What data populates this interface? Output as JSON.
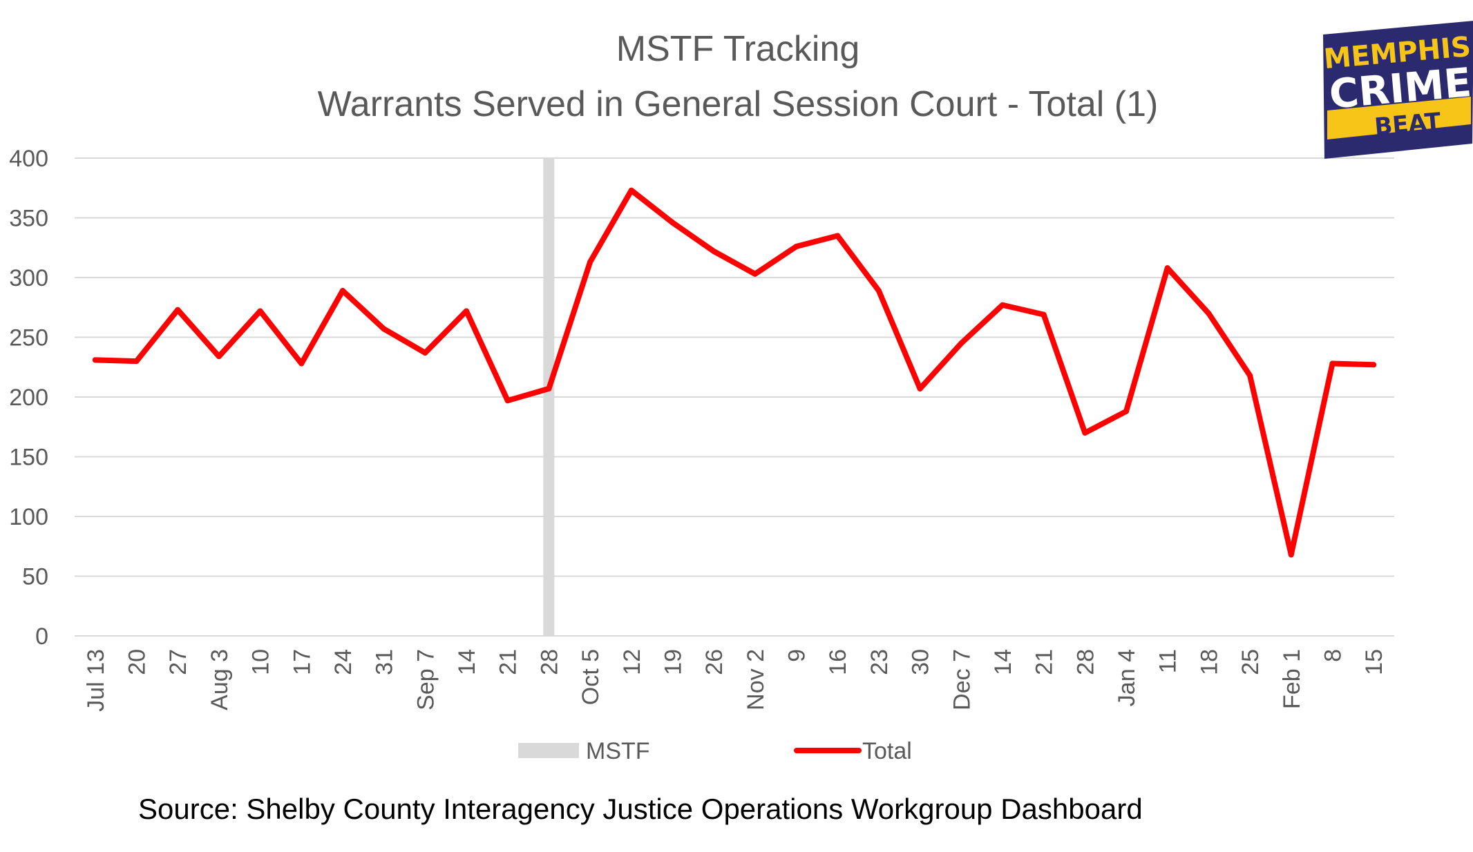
{
  "chart_data": {
    "type": "line",
    "title": "MSTF Tracking",
    "subtitle": "Warrants Served in General Session Court - Total (1)",
    "xlabel": "",
    "ylabel": "",
    "ylim": [
      0,
      400
    ],
    "yticks": [
      "0",
      "50",
      "100",
      "150",
      "200",
      "250",
      "300",
      "350",
      "400"
    ],
    "grid": true,
    "legend_position": "bottom",
    "categories": [
      "Jul 13",
      "20",
      "27",
      "Aug 3",
      "10",
      "17",
      "24",
      "31",
      "Sep 7",
      "14",
      "21",
      "28",
      "Oct 5",
      "12",
      "19",
      "26",
      "Nov 2",
      "9",
      "16",
      "23",
      "30",
      "Dec 7",
      "14",
      "21",
      "28",
      "Jan 4",
      "11",
      "18",
      "25",
      "Feb 1",
      "8",
      "15"
    ],
    "series": [
      {
        "name": "Total",
        "color": "#ff0000",
        "values": [
          231,
          230,
          273,
          234,
          272,
          228,
          289,
          257,
          237,
          272,
          197,
          207,
          313,
          373,
          346,
          322,
          303,
          326,
          335,
          289,
          207,
          245,
          277,
          269,
          170,
          188,
          308,
          270,
          218,
          68,
          228,
          227
        ]
      }
    ],
    "marker": {
      "name": "MSTF",
      "color": "#d9d9d9",
      "category": "28"
    },
    "source": "Source:  Shelby County Interagency Justice Operations Workgroup Dashboard"
  },
  "logo": {
    "line1": "MEMPHIS",
    "line2": "CRIME",
    "line3": "BEAT",
    "bg_color": "#2b2a6e",
    "accent_color": "#f6c518"
  }
}
